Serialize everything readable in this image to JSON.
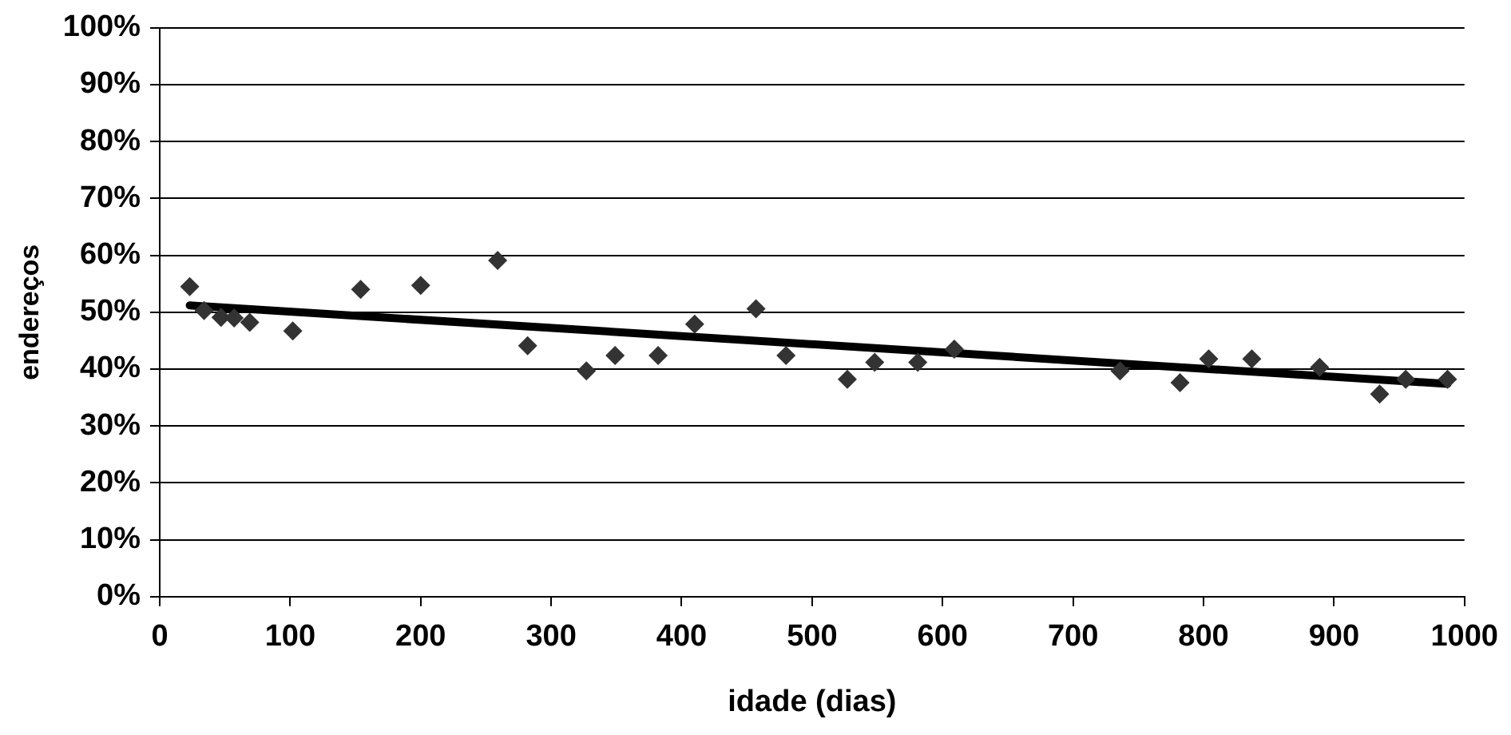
{
  "chart_data": {
    "type": "scatter",
    "xlabel": "idade (dias)",
    "ylabel": "endereços",
    "series": [
      {
        "color": "#333333",
        "marker": "diamond",
        "x": [
          23,
          34,
          47,
          57,
          69,
          102,
          154,
          200,
          259,
          282,
          327,
          349,
          382,
          410,
          457,
          480,
          527,
          548,
          581,
          609,
          736,
          782,
          804,
          837,
          889,
          935,
          955,
          987
        ],
        "values": [
          54.5,
          50.3,
          49.1,
          49,
          48.2,
          46.7,
          54,
          54.7,
          59.1,
          44.1,
          39.7,
          42.4,
          42.4,
          47.9,
          50.6,
          42.4,
          38.2,
          41.2,
          41.2,
          43.5,
          39.7,
          37.6,
          41.8,
          41.8,
          40.3,
          35.6,
          38.2,
          38.2
        ]
      },
      {
        "type": "line",
        "color": "#000000",
        "marker": "none",
        "x": [
          23,
          987
        ],
        "values": [
          51.2,
          37.4
        ]
      }
    ],
    "xlim": [
      0,
      1000
    ],
    "xticks": [
      0,
      100,
      200,
      300,
      400,
      500,
      600,
      700,
      800,
      900,
      1000
    ],
    "ylim": [
      0,
      100
    ],
    "yticks": [
      {
        "value": 0,
        "label": "0%"
      },
      {
        "value": 10,
        "label": "10%"
      },
      {
        "value": 20,
        "label": "20%"
      },
      {
        "value": 30,
        "label": "30%"
      },
      {
        "value": 40,
        "label": "40%"
      },
      {
        "value": 50,
        "label": "50%"
      },
      {
        "value": 60,
        "label": "60%"
      },
      {
        "value": 70,
        "label": "70%"
      },
      {
        "value": 80,
        "label": "80%"
      },
      {
        "value": 90,
        "label": "90%"
      },
      {
        "value": 100,
        "label": "100%"
      }
    ],
    "grid": "y",
    "legend": false
  }
}
